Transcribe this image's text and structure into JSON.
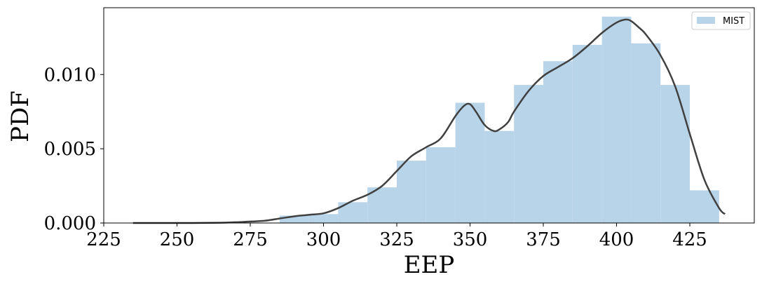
{
  "chart_data": {
    "type": "bar",
    "xlabel": "EEP",
    "ylabel": "PDF",
    "xlim": [
      225,
      447
    ],
    "ylim": [
      0,
      0.0145
    ],
    "xticks": [
      225,
      250,
      275,
      300,
      325,
      350,
      375,
      400,
      425
    ],
    "xtick_labels": [
      "225",
      "250",
      "275",
      "300",
      "325",
      "350",
      "375",
      "400",
      "425"
    ],
    "yticks": [
      0,
      0.005,
      0.01
    ],
    "ytick_labels": [
      "0.000",
      "0.005",
      "0.010"
    ],
    "grid": false,
    "legend": {
      "position": "top-right",
      "entries": [
        "MIST"
      ]
    },
    "histogram": {
      "name": "MIST",
      "color": "#b8d4e8",
      "bin_edges": [
        235,
        245,
        255,
        265,
        275,
        285,
        295,
        305,
        315,
        325,
        335,
        345,
        355,
        365,
        375,
        385,
        395,
        405,
        415,
        425,
        435
      ],
      "values": [
        0.0,
        0.0,
        0.0,
        0.0,
        0.0,
        0.0005,
        0.0006,
        0.0014,
        0.0024,
        0.0042,
        0.0051,
        0.0081,
        0.0062,
        0.0093,
        0.0109,
        0.012,
        0.0139,
        0.0121,
        0.0093,
        0.0022
      ]
    },
    "kde": {
      "color": "#404040",
      "x": [
        235,
        245,
        255,
        265,
        270,
        275,
        280,
        285,
        290,
        295,
        300,
        305,
        310,
        315,
        320,
        325,
        330,
        335,
        340,
        345,
        348,
        350,
        352,
        355,
        358,
        360,
        363,
        365,
        370,
        375,
        380,
        385,
        390,
        395,
        400,
        403,
        405,
        408,
        410,
        415,
        420,
        425,
        430,
        435,
        437
      ],
      "y": [
        0.0,
        0.0,
        0.0,
        2e-05,
        5e-05,
        0.0001,
        0.00015,
        0.0003,
        0.00045,
        0.00055,
        0.00065,
        0.001,
        0.0015,
        0.0019,
        0.0025,
        0.0035,
        0.0045,
        0.0051,
        0.0057,
        0.0072,
        0.0079,
        0.008,
        0.0075,
        0.0066,
        0.0062,
        0.0063,
        0.0068,
        0.0075,
        0.0089,
        0.0099,
        0.0105,
        0.0111,
        0.0119,
        0.0128,
        0.0135,
        0.0137,
        0.0136,
        0.0131,
        0.0127,
        0.0113,
        0.0092,
        0.006,
        0.0029,
        0.001,
        0.0006
      ]
    }
  }
}
